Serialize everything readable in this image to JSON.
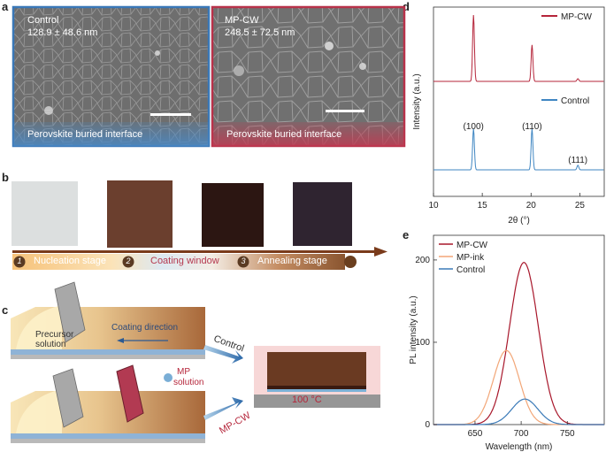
{
  "panel_labels": {
    "a": "a",
    "b": "b",
    "c": "c",
    "d": "d",
    "e": "e"
  },
  "panel_a": {
    "left": {
      "title": "Control",
      "size": "128.9 ± 48.6 nm",
      "caption": "Perovskite buried interface",
      "frame_color": "#3a78b8"
    },
    "right": {
      "title": "MP-CW",
      "size": "248.5 ± 72.5 nm",
      "caption": "Perovskite buried interface",
      "frame_color": "#b8324a"
    }
  },
  "panel_b": {
    "stages": [
      {
        "num": "1",
        "label": "Nucleation stage"
      },
      {
        "num": "2",
        "label": "Coating window"
      },
      {
        "num": "3",
        "label": "Annealing stage"
      }
    ]
  },
  "panel_c": {
    "coating_direction": "Coating direction",
    "precursor_line1": "Precursor",
    "precursor_line2": "solution",
    "mp_line1": "MP",
    "mp_line2": "solution",
    "arrow_control": "Control",
    "arrow_mpcw": "MP-CW",
    "temperature": "100 °C"
  },
  "chart_data": [
    {
      "type": "line",
      "panel": "d",
      "xlabel": "2θ (°)",
      "ylabel": "Intensity (a.u.)",
      "xlim": [
        10,
        27.5
      ],
      "xticks": [
        10,
        15,
        20,
        25
      ],
      "series": [
        {
          "name": "MP-CW",
          "color": "#b5253a",
          "offset": 2.0,
          "peaks": [
            [
              14.1,
              1.0
            ],
            [
              20.1,
              0.55
            ],
            [
              24.8,
              0.04
            ]
          ]
        },
        {
          "name": "Control",
          "color": "#3f86c2",
          "offset": 0.0,
          "peaks": [
            [
              14.1,
              0.62
            ],
            [
              20.1,
              0.62
            ],
            [
              24.8,
              0.07
            ]
          ]
        }
      ],
      "peak_labels": [
        {
          "text": "(100)",
          "x": 14.1
        },
        {
          "text": "(110)",
          "x": 20.1
        },
        {
          "text": "(111)",
          "x": 24.8
        }
      ],
      "legend": "top-right"
    },
    {
      "type": "line",
      "panel": "e",
      "xlabel": "Wavelength (nm)",
      "ylabel": "PL intensity (a.u.)",
      "xlim": [
        605,
        790
      ],
      "ylim": [
        0,
        230
      ],
      "xticks": [
        650,
        700,
        750
      ],
      "yticks": [
        0,
        100,
        200
      ],
      "series": [
        {
          "name": "MP-CW",
          "color": "#a8172b",
          "peak_x": 703,
          "peak_y": 197,
          "width": 22
        },
        {
          "name": "MP-ink",
          "color": "#f2a677",
          "peak_x": 684,
          "peak_y": 90,
          "width": 20
        },
        {
          "name": "Control",
          "color": "#3a7ab8",
          "peak_x": 704,
          "peak_y": 31,
          "width": 20
        }
      ],
      "legend": "top-left"
    }
  ]
}
